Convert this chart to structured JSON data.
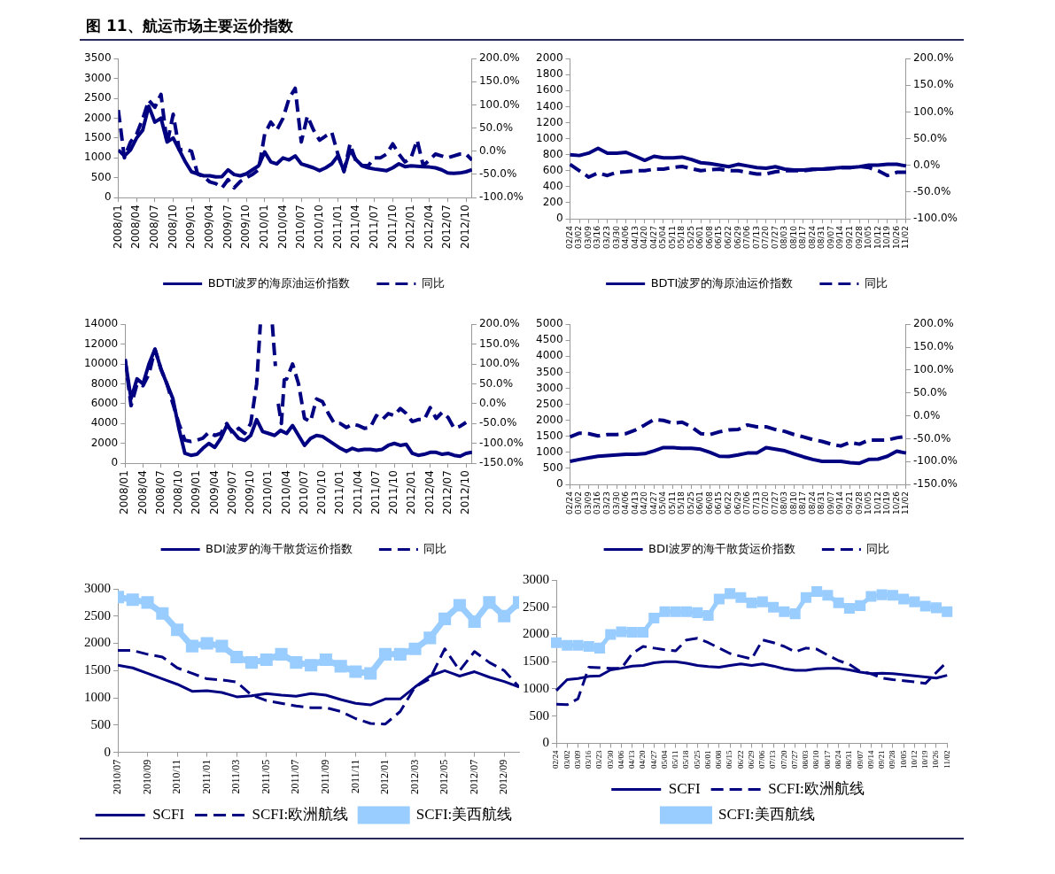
{
  "chart_data": [
    {
      "type": "line",
      "title": "图 11、航运市场主要运价指数",
      "legend": "bottom",
      "x": [
        "2008-01",
        "2008-02",
        "2008-03",
        "2008-04",
        "2008-05",
        "2008-06",
        "2008-07",
        "2008-08",
        "2008-09",
        "2008-10",
        "2008-11",
        "2008-12",
        "2009-01",
        "2009-02",
        "2009-03",
        "2009-04",
        "2009-05",
        "2009-06",
        "2009-07",
        "2009-08",
        "2009-09",
        "2009-10",
        "2009-11",
        "2009-12",
        "2010-01",
        "2010-02",
        "2010-03",
        "2010-04",
        "2010-05",
        "2010-06",
        "2010-07",
        "2010-08",
        "2010-09",
        "2010-10",
        "2010-11",
        "2010-12",
        "2011-01",
        "2011-02",
        "2011-03",
        "2011-04",
        "2011-05",
        "2011-06",
        "2011-07",
        "2011-08",
        "2011-09",
        "2011-10",
        "2011-11",
        "2011-12",
        "2012-01",
        "2012-02",
        "2012-03",
        "2012-04",
        "2012-05",
        "2012-06",
        "2012-07",
        "2012-08",
        "2012-09",
        "2012-10",
        "2012-11"
      ],
      "xlim": [
        "2008-01",
        "2012-11"
      ],
      "xticks": [
        {
          "value": "2008-01",
          "label": "2008/01"
        },
        {
          "value": "2008-04",
          "label": "2008/04"
        },
        {
          "value": "2008-07",
          "label": "2008/07"
        },
        {
          "value": "2008-10",
          "label": "2008/10"
        },
        {
          "value": "2009-01",
          "label": "2009/01"
        },
        {
          "value": "2009-04",
          "label": "2009/04"
        },
        {
          "value": "2009-07",
          "label": "2009/07"
        },
        {
          "value": "2009-10",
          "label": "2009/10"
        },
        {
          "value": "2010-01",
          "label": "2010/01"
        },
        {
          "value": "2010-04",
          "label": "2010/04"
        },
        {
          "value": "2010-07",
          "label": "2010/07"
        },
        {
          "value": "2010-10",
          "label": "2010/10"
        },
        {
          "value": "2011-01",
          "label": "2011/01"
        },
        {
          "value": "2011-04",
          "label": "2011/04"
        },
        {
          "value": "2011-07",
          "label": "2011/07"
        },
        {
          "value": "2011-10",
          "label": "2011/10"
        },
        {
          "value": "2012-01",
          "label": "2012/01"
        },
        {
          "value": "2012-04",
          "label": "2012/04"
        },
        {
          "value": "2012-07",
          "label": "2012/07"
        },
        {
          "value": "2012-10",
          "label": "2012/10"
        }
      ],
      "ylim": [
        0,
        3500
      ],
      "yticks": [
        0,
        500,
        1000,
        1500,
        2000,
        2500,
        3000,
        3500
      ],
      "y2lim": [
        -100,
        200
      ],
      "y2ticks": [
        {
          "value": -100,
          "label": "-100.0%"
        },
        {
          "value": -50,
          "label": "-50.0%"
        },
        {
          "value": 0,
          "label": "0.0%"
        },
        {
          "value": 50,
          "label": "50.0%"
        },
        {
          "value": 100,
          "label": "100.0%"
        },
        {
          "value": 150,
          "label": "150.0%"
        },
        {
          "value": 200,
          "label": "200.0%"
        }
      ],
      "series": [
        {
          "name": "BDTI波罗的海原油运价指数",
          "color": "#000080",
          "line_style": "solid",
          "values": [
            1200,
            1050,
            1200,
            1500,
            1700,
            2300,
            1900,
            2000,
            1400,
            1500,
            1200,
            900,
            650,
            600,
            550,
            550,
            520,
            530,
            700,
            580,
            550,
            600,
            700,
            800,
            1150,
            900,
            850,
            1000,
            950,
            1050,
            850,
            800,
            750,
            680,
            750,
            850,
            1050,
            680,
            1200,
            950,
            800,
            750,
            720,
            700,
            680,
            750,
            850,
            780,
            800,
            790,
            780,
            770,
            750,
            700,
            620,
            610,
            620,
            650,
            700
          ]
        },
        {
          "name": "同比",
          "color": "#000080",
          "line_style": "dashed",
          "axis": "y2",
          "values": [
            89,
            -14,
            20,
            37,
            70,
            110,
            95,
            123,
            16,
            80,
            3,
            5,
            0,
            -49,
            -55,
            -66,
            -70,
            -79,
            -61,
            -79,
            -65,
            -57,
            -50,
            -40,
            37,
            63,
            46,
            71,
            114,
            136,
            20,
            76,
            46,
            24,
            33,
            41,
            -6,
            -44,
            16,
            -23,
            -31,
            -31,
            -14,
            -14,
            -6,
            16,
            -6,
            -23,
            -14,
            24,
            -31,
            -19,
            -6,
            -10,
            -14,
            -10,
            -6,
            -6,
            -19
          ]
        }
      ]
    },
    {
      "type": "line",
      "legend": "bottom",
      "categories": [
        "02/24",
        "03/02",
        "03/09",
        "03/16",
        "03/23",
        "03/30",
        "04/06",
        "04/13",
        "04/20",
        "04/27",
        "05/04",
        "05/11",
        "05/18",
        "05/25",
        "06/01",
        "06/08",
        "06/15",
        "06/22",
        "06/29",
        "07/06",
        "07/13",
        "07/20",
        "07/27",
        "08/03",
        "08/10",
        "08/17",
        "08/24",
        "08/31",
        "09/07",
        "09/14",
        "09/21",
        "09/28",
        "10/05",
        "10/12",
        "10/19",
        "10/26",
        "11/02"
      ],
      "ylim": [
        0,
        2000
      ],
      "yticks": [
        0,
        200,
        400,
        600,
        800,
        1000,
        1200,
        1400,
        1600,
        1800,
        2000
      ],
      "y2lim": [
        -100,
        200
      ],
      "y2ticks": [
        {
          "value": -100,
          "label": "-100.0%"
        },
        {
          "value": -50,
          "label": "-50.0%"
        },
        {
          "value": 0,
          "label": "0.0%"
        },
        {
          "value": 50,
          "label": "50.0%"
        },
        {
          "value": 100,
          "label": "100.0%"
        },
        {
          "value": 150,
          "label": "150.0%"
        },
        {
          "value": 200,
          "label": "200.0%"
        }
      ],
      "series": [
        {
          "name": "BDTI波罗的海原油运价指数",
          "color": "#000080",
          "line_style": "solid",
          "values": [
            800,
            790,
            820,
            880,
            820,
            820,
            830,
            780,
            730,
            780,
            760,
            760,
            770,
            740,
            700,
            690,
            670,
            650,
            680,
            660,
            640,
            630,
            650,
            620,
            610,
            610,
            620,
            620,
            630,
            640,
            640,
            650,
            670,
            670,
            680,
            680,
            660
          ]
        },
        {
          "name": "同比",
          "color": "#000080",
          "line_style": "dashed",
          "axis": "y2",
          "values": [
            2,
            -10,
            -22,
            -14,
            -19,
            -13,
            -12,
            -10,
            -10,
            -7,
            -7,
            -4,
            -2,
            -6,
            -10,
            -8,
            -7,
            -10,
            -10,
            -13,
            -16,
            -16,
            -12,
            -10,
            -10,
            -10,
            -8,
            -7,
            -6,
            -4,
            -4,
            -2,
            -4,
            -10,
            -19,
            -13,
            -13
          ]
        }
      ]
    },
    {
      "type": "line",
      "legend": "bottom",
      "x": [
        "2008-01",
        "2008-02",
        "2008-03",
        "2008-04",
        "2008-05",
        "2008-06",
        "2008-07",
        "2008-08",
        "2008-09",
        "2008-10",
        "2008-11",
        "2008-12",
        "2009-01",
        "2009-02",
        "2009-03",
        "2009-04",
        "2009-05",
        "2009-06",
        "2009-07",
        "2009-08",
        "2009-09",
        "2009-10",
        "2009-11",
        "2009-12",
        "2010-01",
        "2010-02",
        "2010-03",
        "2010-04",
        "2010-05",
        "2010-06",
        "2010-07",
        "2010-08",
        "2010-09",
        "2010-10",
        "2010-11",
        "2010-12",
        "2011-01",
        "2011-02",
        "2011-03",
        "2011-04",
        "2011-05",
        "2011-06",
        "2011-07",
        "2011-08",
        "2011-09",
        "2011-10",
        "2011-11",
        "2011-12",
        "2012-01",
        "2012-02",
        "2012-03",
        "2012-04",
        "2012-05",
        "2012-06",
        "2012-07",
        "2012-08",
        "2012-09",
        "2012-10",
        "2012-11"
      ],
      "xlim": [
        "2008-01",
        "2012-11"
      ],
      "xticks": [
        {
          "value": "2008-01",
          "label": "2008/01"
        },
        {
          "value": "2008-04",
          "label": "2008/04"
        },
        {
          "value": "2008-07",
          "label": "2008/07"
        },
        {
          "value": "2008-10",
          "label": "2008/10"
        },
        {
          "value": "2009-01",
          "label": "2009/01"
        },
        {
          "value": "2009-04",
          "label": "2009/04"
        },
        {
          "value": "2009-07",
          "label": "2009/07"
        },
        {
          "value": "2009-10",
          "label": "2009/10"
        },
        {
          "value": "2010-01",
          "label": "2010/01"
        },
        {
          "value": "2010-04",
          "label": "2010/04"
        },
        {
          "value": "2010-07",
          "label": "2010/07"
        },
        {
          "value": "2010-10",
          "label": "2010/10"
        },
        {
          "value": "2011-01",
          "label": "2011/01"
        },
        {
          "value": "2011-04",
          "label": "2011/04"
        },
        {
          "value": "2011-07",
          "label": "2011/07"
        },
        {
          "value": "2011-10",
          "label": "2011/10"
        },
        {
          "value": "2012-01",
          "label": "2012/01"
        },
        {
          "value": "2012-04",
          "label": "2012/04"
        },
        {
          "value": "2012-07",
          "label": "2012/07"
        },
        {
          "value": "2012-10",
          "label": "2012/10"
        }
      ],
      "ylim": [
        0,
        14000
      ],
      "yticks": [
        0,
        2000,
        4000,
        6000,
        8000,
        10000,
        12000,
        14000
      ],
      "y2lim": [
        -150,
        200
      ],
      "y2ticks": [
        {
          "value": -150,
          "label": "-150.0%"
        },
        {
          "value": -100,
          "label": "-100.0%"
        },
        {
          "value": -50,
          "label": "-50.0%"
        },
        {
          "value": 0,
          "label": "0.0%"
        },
        {
          "value": 50,
          "label": "50.0%"
        },
        {
          "value": 100,
          "label": "100.0%"
        },
        {
          "value": 150,
          "label": "150.0%"
        },
        {
          "value": 200,
          "label": "200.0%"
        }
      ],
      "series": [
        {
          "name": "BDI波罗的海干散货运价指数",
          "color": "#000080",
          "line_style": "solid",
          "values": [
            10500,
            6500,
            8500,
            8000,
            10000,
            11500,
            9500,
            8000,
            6500,
            3500,
            1000,
            800,
            900,
            1500,
            2000,
            1600,
            2500,
            3800,
            3200,
            2500,
            2300,
            2800,
            4400,
            3200,
            3000,
            2800,
            3300,
            3000,
            3800,
            2800,
            1800,
            2500,
            2800,
            2700,
            2300,
            1900,
            1500,
            1200,
            1500,
            1300,
            1400,
            1400,
            1300,
            1400,
            1800,
            2000,
            1800,
            1900,
            1000,
            800,
            900,
            1100,
            1100,
            900,
            1000,
            800,
            700,
            1000,
            1100
          ]
        },
        {
          "name": "同比",
          "color": "#000080",
          "line_style": "dashed",
          "axis": "y2",
          "x": [
            "2008-01",
            "2008-02",
            "2008-03",
            "2008-04",
            "2008-05",
            "2008-06",
            "2008-07",
            "2008-08",
            "2008-09",
            "2008-10",
            "2008-11",
            "2008-12",
            "2009-01",
            "2009-02",
            "2009-03",
            "2009-04",
            "2009-05",
            "2009-06",
            "2009-07",
            "2009-08",
            "2009-09",
            "2009-10",
            "2009-11",
            "2009-11-20",
            "2009-12-01",
            "2010-01-20",
            "2010-02-05",
            "2010-02-10",
            "2010-02-20",
            "2010-03-05",
            "2010-03-20",
            "2010-04",
            "2010-05",
            "2010-06",
            "2010-07",
            "2010-08",
            "2010-09",
            "2010-10",
            "2010-11",
            "2010-12",
            "2011-01",
            "2011-02",
            "2011-03",
            "2011-04",
            "2011-05",
            "2011-06",
            "2011-07",
            "2011-08",
            "2011-09",
            "2011-10",
            "2011-11",
            "2011-12",
            "2012-01",
            "2012-02",
            "2012-03",
            "2012-04",
            "2012-05",
            "2012-06",
            "2012-07",
            "2012-08",
            "2012-09",
            "2012-10"
          ],
          "values": [
            112,
            -5,
            50,
            45,
            75,
            137,
            87,
            50,
            0,
            -50,
            -92,
            -95,
            -92,
            -87,
            -72,
            -80,
            -75,
            -50,
            -75,
            -62,
            -75,
            -50,
            50,
            200,
            null,
            200,
            95,
            null,
            0,
            -50,
            60,
            62,
            100,
            50,
            -37,
            -45,
            12,
            5,
            -25,
            -50,
            -50,
            -60,
            -52,
            -55,
            -62,
            -60,
            -30,
            -40,
            -25,
            -30,
            -12,
            -25,
            -45,
            -40,
            -40,
            -10,
            -37,
            -22,
            -35,
            -62,
            -57,
            -47
          ]
        }
      ]
    },
    {
      "type": "line",
      "legend": "bottom",
      "categories": [
        "02/24",
        "03/02",
        "03/09",
        "03/16",
        "03/23",
        "03/30",
        "04/06",
        "04/13",
        "04/20",
        "04/27",
        "05/04",
        "05/11",
        "05/18",
        "05/25",
        "06/01",
        "06/08",
        "06/15",
        "06/22",
        "06/29",
        "07/06",
        "07/13",
        "07/20",
        "07/27",
        "08/03",
        "08/10",
        "08/17",
        "08/24",
        "08/31",
        "09/07",
        "09/14",
        "09/21",
        "09/28",
        "10/05",
        "10/12",
        "10/19",
        "10/26",
        "11/02"
      ],
      "ylim": [
        0,
        5000
      ],
      "yticks": [
        0,
        500,
        1000,
        1500,
        2000,
        2500,
        3000,
        3500,
        4000,
        4500,
        5000
      ],
      "y2lim": [
        -150,
        200
      ],
      "y2ticks": [
        {
          "value": -150,
          "label": "-150.0%"
        },
        {
          "value": -100,
          "label": "-100.0%"
        },
        {
          "value": -50,
          "label": "-50.0%"
        },
        {
          "value": 0,
          "label": "0.0%"
        },
        {
          "value": 50,
          "label": "50.0%"
        },
        {
          "value": 100,
          "label": "100.0%"
        },
        {
          "value": 150,
          "label": "150.0%"
        },
        {
          "value": 200,
          "label": "200.0%"
        }
      ],
      "series": [
        {
          "name": "BDI波罗的海干散货运价指数",
          "color": "#000080",
          "line_style": "solid",
          "values": [
            720,
            780,
            830,
            880,
            900,
            920,
            940,
            940,
            960,
            1050,
            1150,
            1150,
            1130,
            1130,
            1100,
            1000,
            880,
            870,
            920,
            980,
            980,
            1150,
            1100,
            1050,
            950,
            860,
            780,
            720,
            720,
            720,
            680,
            660,
            780,
            790,
            880,
            1040,
            980
          ]
        },
        {
          "name": "同比",
          "color": "#000080",
          "line_style": "dashed",
          "axis": "y2",
          "values": [
            -46,
            -38,
            -39,
            -44,
            -41,
            -41,
            -39,
            -31,
            -20,
            -8,
            -10,
            -16,
            -14,
            -24,
            -39,
            -41,
            -35,
            -31,
            -30,
            -20,
            -24,
            -24,
            -30,
            -34,
            -41,
            -46,
            -52,
            -56,
            -62,
            -66,
            -58,
            -62,
            -53,
            -53,
            -53,
            -48,
            -45
          ]
        }
      ]
    },
    {
      "type": "line",
      "legend": "bottom",
      "x": [
        "2010-07",
        "2010-08",
        "2010-09",
        "2010-10",
        "2010-11",
        "2010-12",
        "2011-01",
        "2011-02",
        "2011-03",
        "2011-04",
        "2011-05",
        "2011-06",
        "2011-07",
        "2011-08",
        "2011-09",
        "2011-10",
        "2011-11",
        "2011-12",
        "2012-01",
        "2012-02",
        "2012-03",
        "2012-04",
        "2012-05",
        "2012-06",
        "2012-07",
        "2012-08",
        "2012-09",
        "2012-10"
      ],
      "xlim": [
        "2010-07",
        "2012-10"
      ],
      "xticks": [
        {
          "value": "2010-07",
          "label": "2010/07"
        },
        {
          "value": "2010-09",
          "label": "2010/09"
        },
        {
          "value": "2010-11",
          "label": "2010/11"
        },
        {
          "value": "2011-01",
          "label": "2011/01"
        },
        {
          "value": "2011-03",
          "label": "2011/03"
        },
        {
          "value": "2011-05",
          "label": "2011/05"
        },
        {
          "value": "2011-07",
          "label": "2011/07"
        },
        {
          "value": "2011-09",
          "label": "2011/09"
        },
        {
          "value": "2011-11",
          "label": "2011/11"
        },
        {
          "value": "2012-01",
          "label": "2012/01"
        },
        {
          "value": "2012-03",
          "label": "2012/03"
        },
        {
          "value": "2012-05",
          "label": "2012/05"
        },
        {
          "value": "2012-07",
          "label": "2012/07"
        },
        {
          "value": "2012-09",
          "label": "2012/09"
        }
      ],
      "ylim": [
        0,
        3000
      ],
      "yticks": [
        0,
        500,
        1000,
        1500,
        2000,
        2500,
        3000
      ],
      "series": [
        {
          "name": "SCFI",
          "color": "#000080",
          "line_style": "solid",
          "values": [
            1600,
            1550,
            1450,
            1350,
            1250,
            1120,
            1130,
            1100,
            1020,
            1040,
            1080,
            1050,
            1030,
            1080,
            1050,
            970,
            900,
            870,
            980,
            980,
            1200,
            1400,
            1500,
            1400,
            1480,
            1380,
            1300,
            1200
          ]
        },
        {
          "name": "SCFI:欧洲航线",
          "color": "#000080",
          "line_style": "dashed",
          "values": [
            1870,
            1870,
            1800,
            1750,
            1550,
            1450,
            1350,
            1330,
            1290,
            1050,
            950,
            900,
            850,
            820,
            820,
            750,
            620,
            530,
            520,
            750,
            1200,
            1350,
            1900,
            1500,
            1850,
            1650,
            1500,
            1200
          ]
        },
        {
          "name": "SCFI:美西航线",
          "color": "#99ccff",
          "line_style": "solid",
          "marker": "square",
          "values": [
            2850,
            2800,
            2750,
            2550,
            2250,
            1950,
            2000,
            1950,
            1750,
            1650,
            1700,
            1800,
            1650,
            1600,
            1700,
            1580,
            1480,
            1450,
            1800,
            1800,
            1900,
            2100,
            2450,
            2700,
            2400,
            2750,
            2500,
            2750
          ]
        }
      ]
    },
    {
      "type": "line",
      "legend": "bottom",
      "categories": [
        "02/24",
        "03/02",
        "03/09",
        "03/16",
        "03/23",
        "03/30",
        "04/06",
        "04/13",
        "04/20",
        "04/27",
        "05/04",
        "05/11",
        "05/18",
        "05/25",
        "06/01",
        "06/08",
        "06/15",
        "06/22",
        "06/29",
        "07/06",
        "07/13",
        "07/20",
        "07/27",
        "08/03",
        "08/10",
        "08/17",
        "08/24",
        "08/31",
        "09/07",
        "09/14",
        "09/21",
        "09/28",
        "10/05",
        "10/12",
        "10/19",
        "10/26",
        "11/02"
      ],
      "ylim": [
        0,
        3000
      ],
      "yticks": [
        0,
        500,
        1000,
        1500,
        2000,
        2500,
        3000
      ],
      "series": [
        {
          "name": "SCFI",
          "color": "#000080",
          "line_style": "solid",
          "values": [
            970,
            1170,
            1190,
            1230,
            1240,
            1350,
            1380,
            1420,
            1430,
            1480,
            1500,
            1500,
            1470,
            1430,
            1410,
            1400,
            1430,
            1460,
            1430,
            1460,
            1420,
            1370,
            1340,
            1340,
            1370,
            1380,
            1380,
            1350,
            1310,
            1280,
            1290,
            1280,
            1260,
            1240,
            1220,
            1200,
            1250
          ]
        },
        {
          "name": "SCFI:欧洲航线",
          "color": "#000080",
          "line_style": "dashed",
          "values": [
            720,
            710,
            820,
            1400,
            1390,
            1380,
            1380,
            1650,
            1780,
            1750,
            1720,
            1700,
            1900,
            1930,
            1850,
            1750,
            1650,
            1600,
            1550,
            1900,
            1850,
            1780,
            1680,
            1750,
            1730,
            1620,
            1520,
            1450,
            1320,
            1280,
            1200,
            1170,
            1150,
            1130,
            1100,
            1300,
            1500
          ]
        },
        {
          "name": "SCFI:美西航线",
          "color": "#99ccff",
          "line_style": "solid",
          "marker": "square",
          "values": [
            1850,
            1800,
            1800,
            1780,
            1750,
            2000,
            2050,
            2040,
            2040,
            2300,
            2420,
            2420,
            2420,
            2400,
            2350,
            2650,
            2750,
            2680,
            2580,
            2600,
            2500,
            2420,
            2380,
            2680,
            2790,
            2720,
            2580,
            2480,
            2530,
            2700,
            2730,
            2720,
            2650,
            2600,
            2520,
            2490,
            2420
          ]
        }
      ]
    }
  ]
}
